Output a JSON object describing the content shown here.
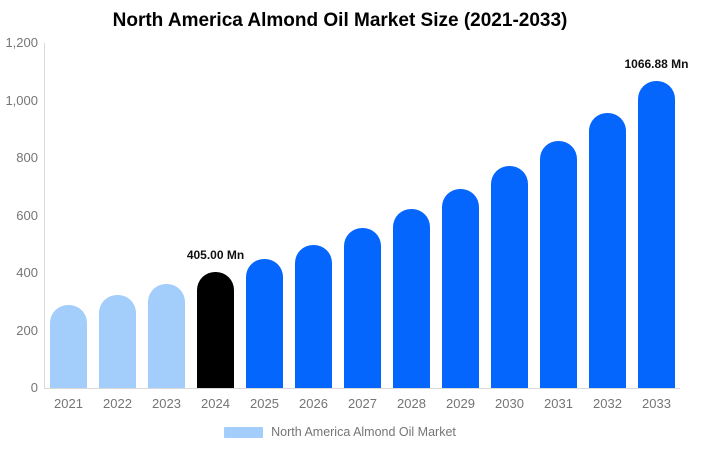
{
  "title": "North America Almond Oil Market Size (2021-2033)",
  "legend": {
    "label": "North America Almond Oil Market",
    "swatch_color": "#A3CDFA"
  },
  "colors": {
    "historical_bar": "#A3CDFA",
    "base_year_bar": "#000000",
    "forecast_bar": "#0566FE",
    "axis_line": "#D9D9D9",
    "axis_text": "#757575",
    "title_text": "#000000",
    "background": "#FFFFFF"
  },
  "chart_data": {
    "type": "bar",
    "title": "North America Almond Oil Market Size (2021-2033)",
    "xlabel": "",
    "ylabel": "",
    "unit": "Mn",
    "categories": [
      "2021",
      "2022",
      "2023",
      "2024",
      "2025",
      "2026",
      "2027",
      "2028",
      "2029",
      "2030",
      "2031",
      "2032",
      "2033"
    ],
    "values": [
      290,
      322,
      362,
      405,
      448,
      496,
      557,
      621,
      693,
      772,
      858,
      957,
      1066.88
    ],
    "bar_colors": [
      "#A3CDFA",
      "#A3CDFA",
      "#A3CDFA",
      "#000000",
      "#0566FE",
      "#0566FE",
      "#0566FE",
      "#0566FE",
      "#0566FE",
      "#0566FE",
      "#0566FE",
      "#0566FE",
      "#0566FE"
    ],
    "annotations": [
      {
        "index": 3,
        "text": "405.00 Mn"
      },
      {
        "index": 12,
        "text": "1066.88 Mn"
      }
    ],
    "y_ticks": [
      {
        "value": 0,
        "label": "0"
      },
      {
        "value": 200,
        "label": "200"
      },
      {
        "value": 400,
        "label": "400"
      },
      {
        "value": 600,
        "label": "600"
      },
      {
        "value": 800,
        "label": "800"
      },
      {
        "value": 1000,
        "label": "1,000"
      },
      {
        "value": 1200,
        "label": "1,200"
      }
    ],
    "ylim": [
      0,
      1200
    ],
    "grid": false,
    "legend_entries": [
      "North America Almond Oil Market"
    ],
    "legend_position": "bottom"
  }
}
